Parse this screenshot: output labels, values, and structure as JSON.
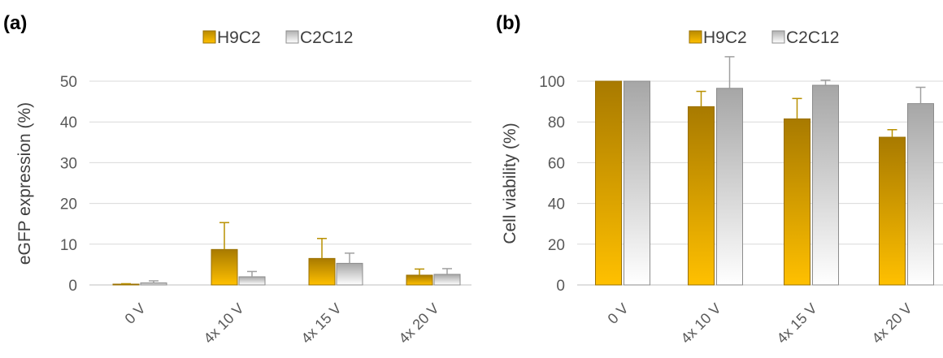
{
  "chart_data": [
    {
      "type": "bar",
      "panel_label": "(a)",
      "categories": [
        "0 V",
        "4x 10 V",
        "4x 15 V",
        "4x 20 V"
      ],
      "series": [
        {
          "name": "H9C2",
          "values": [
            0.2,
            8.7,
            6.5,
            2.4
          ],
          "errors": [
            0.1,
            6.6,
            4.9,
            1.5
          ]
        },
        {
          "name": "C2C12",
          "values": [
            0.5,
            2.0,
            5.3,
            2.6
          ],
          "errors": [
            0.5,
            1.3,
            2.5,
            1.4
          ]
        }
      ],
      "yticks": [
        0,
        10,
        20,
        30,
        40,
        50
      ],
      "ylabel": "eGFP expression (%)",
      "ylim": [
        0,
        50
      ],
      "grid": true,
      "legend": "top-center"
    },
    {
      "type": "bar",
      "panel_label": "(b)",
      "categories": [
        "0 V",
        "4x 10 V",
        "4x 15 V",
        "4x 20 V"
      ],
      "series": [
        {
          "name": "H9C2",
          "values": [
            100,
            87.5,
            81.5,
            72.5
          ],
          "errors": [
            0,
            7.5,
            10,
            3.7
          ]
        },
        {
          "name": "C2C12",
          "values": [
            100,
            96.5,
            98,
            89
          ],
          "errors": [
            0,
            15.5,
            2.5,
            8
          ]
        }
      ],
      "yticks": [
        0,
        20,
        40,
        60,
        80,
        100
      ],
      "ylabel": "Cell viability (%)",
      "ylim": [
        0,
        100
      ],
      "grid": true,
      "legend": "top-center"
    }
  ],
  "colors": {
    "h9c2_top": "#a87a00",
    "h9c2_bottom": "#ffc000",
    "h9c2_border": "#9a7000",
    "c2c12_top": "#a6a6a6",
    "c2c12_bottom": "#ffffff",
    "c2c12_border": "#8c8c8c",
    "grid": "#d9d9d9",
    "axis": "#bfbfbf",
    "h9c2_err": "#b89000",
    "c2c12_err": "#a0a0a0"
  }
}
